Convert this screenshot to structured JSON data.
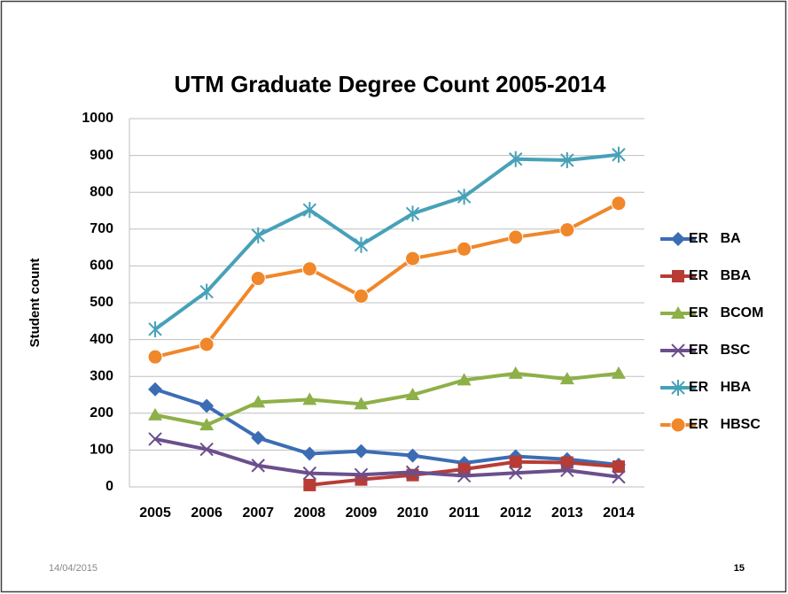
{
  "chart_data": {
    "type": "line",
    "title": "UTM Graduate Degree Count 2005-2014",
    "y_label": "Student count",
    "categories": [
      "2005",
      "2006",
      "2007",
      "2008",
      "2009",
      "2010",
      "2011",
      "2012",
      "2013",
      "2014"
    ],
    "ylim": [
      0,
      1000
    ],
    "yticks": [
      0,
      100,
      200,
      300,
      400,
      500,
      600,
      700,
      800,
      900,
      1000
    ],
    "grid": true,
    "legend": "right",
    "series": [
      {
        "name": "ER   BA",
        "color": "#3c6db4",
        "marker": "diamond",
        "values": [
          265,
          220,
          133,
          90,
          97,
          85,
          65,
          83,
          75,
          60
        ]
      },
      {
        "name": "ER   BBA",
        "color": "#b83c35",
        "marker": "square",
        "values": [
          null,
          null,
          null,
          5,
          20,
          32,
          48,
          68,
          66,
          55
        ]
      },
      {
        "name": "ER   BCOM",
        "color": "#8db048",
        "marker": "triangle",
        "values": [
          195,
          168,
          230,
          237,
          225,
          250,
          290,
          308,
          293,
          308
        ]
      },
      {
        "name": "ER   BSC",
        "color": "#6b4f8c",
        "marker": "x",
        "values": [
          130,
          102,
          58,
          37,
          33,
          40,
          30,
          38,
          45,
          27
        ]
      },
      {
        "name": "ER   HBA",
        "color": "#47a1b8",
        "marker": "asterisk",
        "values": [
          428,
          530,
          683,
          752,
          657,
          742,
          788,
          890,
          887,
          902
        ]
      },
      {
        "name": "ER   HBSC",
        "color": "#f0872a",
        "marker": "circle",
        "values": [
          353,
          387,
          566,
          592,
          518,
          620,
          646,
          678,
          698,
          770
        ]
      }
    ]
  },
  "footer": {
    "date": "14/04/2015",
    "page": "15"
  }
}
